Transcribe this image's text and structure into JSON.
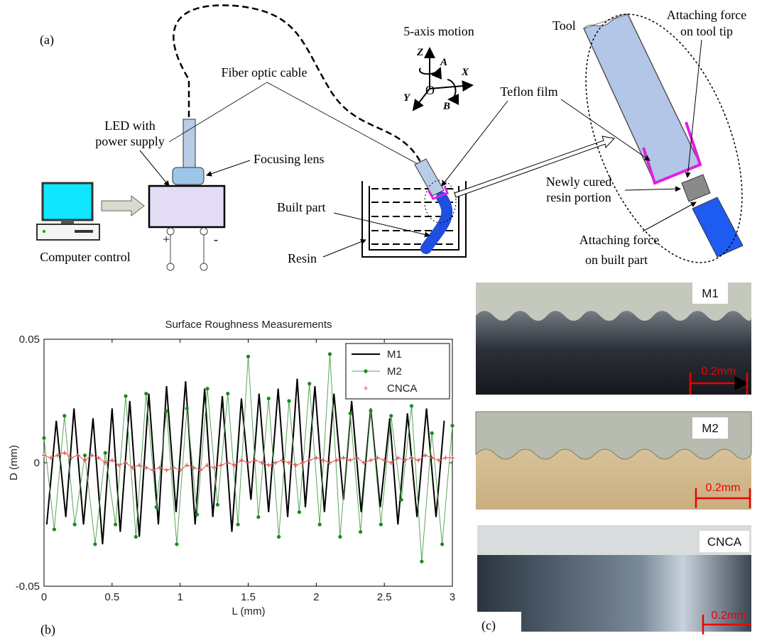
{
  "diagram": {
    "panel_label": "(a)",
    "motion_label": "5-axis motion",
    "axes": {
      "z": "Z",
      "a": "A",
      "x": "X",
      "y": "Y",
      "o": "O",
      "b": "B"
    },
    "tool_label": "Tool",
    "tool_tip_force": [
      "Attaching force",
      "on tool tip"
    ],
    "fiber_label": "Fiber optic cable",
    "led_label": [
      "LED with",
      "power supply"
    ],
    "teflon_label": "Teflon film",
    "lens_label": "Focusing lens",
    "cured_label": [
      "Newly cured",
      "resin portion"
    ],
    "built_label": "Built part",
    "resin_label": "Resin",
    "computer_label": "Computer control",
    "part_force": [
      "Attaching force",
      "on built part"
    ],
    "plus": "+",
    "minus": "-"
  },
  "chart_data": {
    "type": "line",
    "title": "Surface Roughness Measurements",
    "panel_label": "(b)",
    "x_label": "L (mm)",
    "y_label": "D (mm)",
    "xlim": [
      0,
      3
    ],
    "ylim": [
      -0.05,
      0.05
    ],
    "xticks": [
      0,
      0.5,
      1,
      1.5,
      2,
      2.5,
      3
    ],
    "yticks": [
      -0.05,
      0,
      0.05
    ],
    "grid": false,
    "legend": "upper right",
    "series": [
      {
        "name": "M1",
        "color": "#000000",
        "marker": "none",
        "x": [
          0.02,
          0.09,
          0.16,
          0.22,
          0.29,
          0.36,
          0.43,
          0.5,
          0.56,
          0.63,
          0.7,
          0.77,
          0.84,
          0.9,
          0.97,
          1.04,
          1.11,
          1.18,
          1.24,
          1.31,
          1.38,
          1.45,
          1.52,
          1.58,
          1.65,
          1.72,
          1.79,
          1.86,
          1.92,
          1.99,
          2.06,
          2.13,
          2.2,
          2.26,
          2.33,
          2.4,
          2.47,
          2.54,
          2.6,
          2.67,
          2.74,
          2.81,
          2.88,
          2.94
        ],
        "values": [
          -0.025,
          0.017,
          -0.022,
          0.022,
          -0.025,
          0.018,
          -0.033,
          0.022,
          -0.028,
          0.025,
          -0.03,
          0.028,
          -0.025,
          0.031,
          -0.02,
          0.033,
          -0.025,
          0.03,
          -0.022,
          0.027,
          -0.028,
          0.026,
          -0.015,
          0.028,
          -0.02,
          0.03,
          -0.022,
          0.034,
          -0.018,
          0.031,
          -0.02,
          0.028,
          -0.015,
          0.025,
          -0.02,
          0.022,
          -0.018,
          0.018,
          -0.025,
          0.02,
          -0.022,
          0.022,
          -0.022,
          0.017
        ]
      },
      {
        "name": "M2",
        "color": "#5aa55a",
        "marker": "dot",
        "x": [
          0,
          0.075,
          0.15,
          0.225,
          0.3,
          0.375,
          0.45,
          0.525,
          0.6,
          0.675,
          0.75,
          0.825,
          0.9,
          0.975,
          1.05,
          1.125,
          1.2,
          1.275,
          1.35,
          1.425,
          1.5,
          1.575,
          1.65,
          1.725,
          1.8,
          1.875,
          1.95,
          2.025,
          2.1,
          2.175,
          2.25,
          2.325,
          2.4,
          2.475,
          2.55,
          2.625,
          2.7,
          2.775,
          2.85,
          2.925,
          3
        ],
        "values": [
          0.01,
          -0.027,
          0.019,
          -0.025,
          0.003,
          -0.033,
          0.004,
          -0.025,
          0.027,
          -0.03,
          0.028,
          -0.018,
          0.021,
          -0.033,
          0.022,
          -0.021,
          0.03,
          -0.017,
          0.028,
          -0.025,
          0.043,
          -0.022,
          0.026,
          -0.03,
          0.025,
          -0.02,
          0.032,
          -0.025,
          0.044,
          -0.03,
          0.02,
          -0.028,
          0.021,
          -0.025,
          0.019,
          -0.015,
          0.023,
          -0.04,
          0.012,
          -0.033,
          0.015
        ]
      },
      {
        "name": "CNCA",
        "color": "#e05a5a",
        "marker": "plus",
        "x": [
          0,
          0.05,
          0.1,
          0.15,
          0.2,
          0.25,
          0.3,
          0.35,
          0.4,
          0.45,
          0.5,
          0.55,
          0.6,
          0.65,
          0.7,
          0.75,
          0.8,
          0.85,
          0.9,
          0.95,
          1,
          1.05,
          1.1,
          1.15,
          1.2,
          1.25,
          1.3,
          1.35,
          1.4,
          1.45,
          1.5,
          1.55,
          1.6,
          1.65,
          1.7,
          1.75,
          1.8,
          1.85,
          1.9,
          1.95,
          2,
          2.05,
          2.1,
          2.15,
          2.2,
          2.25,
          2.3,
          2.35,
          2.4,
          2.45,
          2.5,
          2.55,
          2.6,
          2.65,
          2.7,
          2.75,
          2.8,
          2.85,
          2.9,
          2.95,
          3
        ],
        "values": [
          0.003,
          0.002,
          0.003,
          0.004,
          0.002,
          0.003,
          0.001,
          0.003,
          0.002,
          0,
          0.001,
          -0.001,
          0,
          -0.002,
          -0.001,
          -0.002,
          -0.003,
          -0.002,
          -0.003,
          -0.002,
          -0.003,
          -0.001,
          -0.002,
          -0.003,
          -0.001,
          -0.002,
          -0.001,
          0,
          -0.001,
          0.001,
          0,
          0.001,
          0,
          -0.001,
          0,
          0.001,
          0,
          -0.001,
          0,
          0.001,
          0.002,
          0.001,
          0,
          0.001,
          0.002,
          0.001,
          0.002,
          0,
          0.001,
          0.002,
          0.001,
          0,
          0.002,
          0.001,
          0.002,
          0.001,
          0.003,
          0.002,
          0.001,
          0.002,
          0.002
        ]
      }
    ]
  },
  "photos": {
    "panel_label": "(c)",
    "labels": [
      "M1",
      "M2",
      "CNCA"
    ],
    "scale_labels": [
      "0.2mm",
      "0.2mm",
      "0.2mm"
    ]
  }
}
